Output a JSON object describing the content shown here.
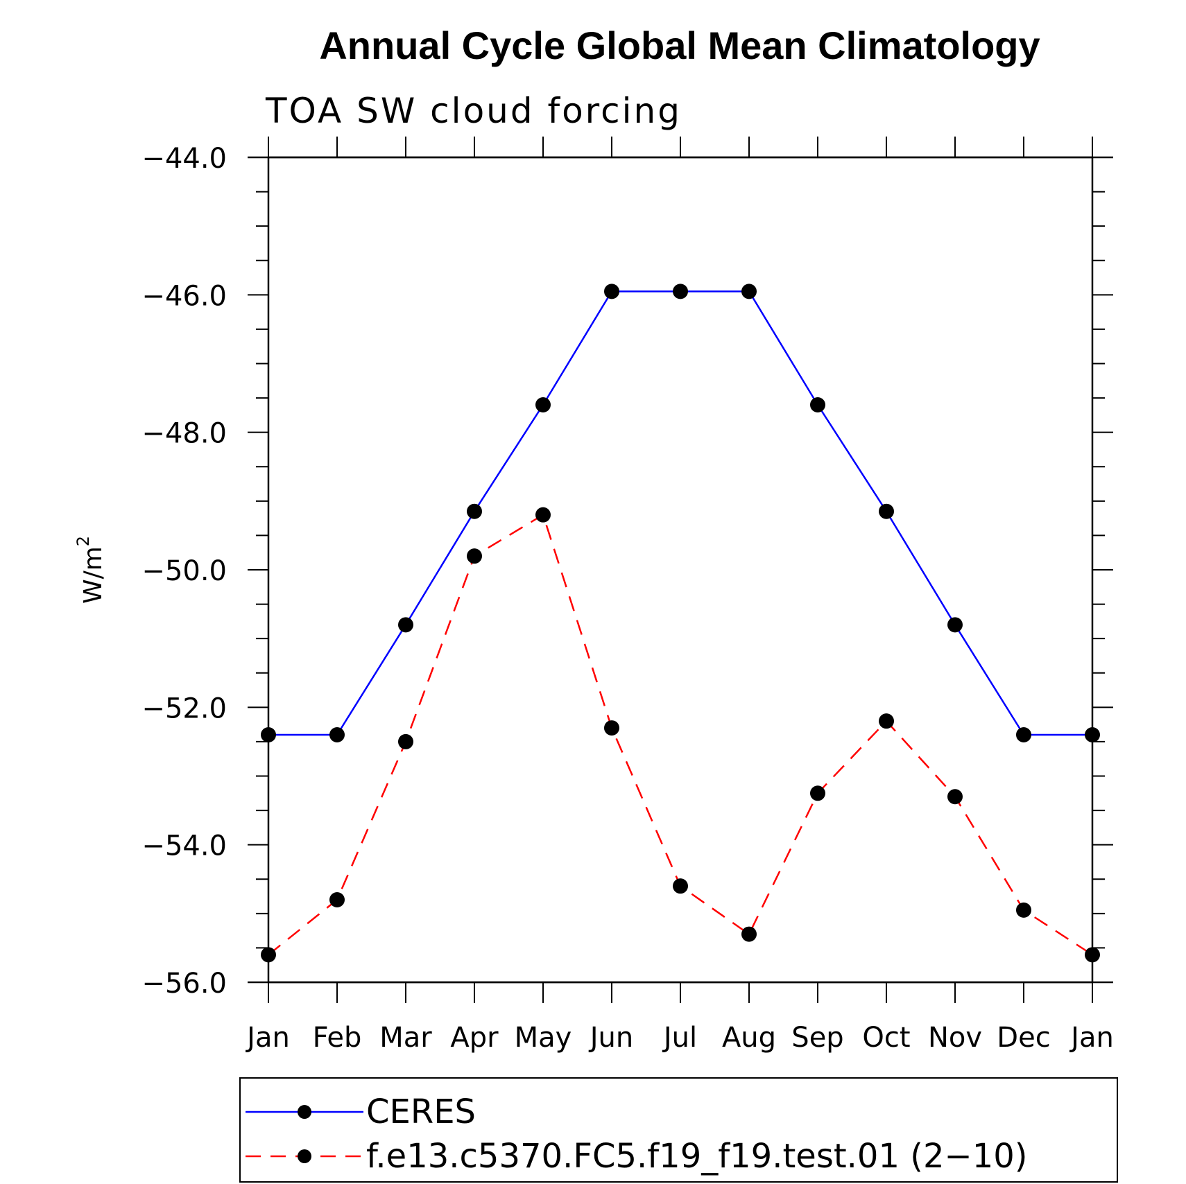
{
  "chart_data": {
    "type": "line",
    "title": "Annual Cycle Global Mean Climatology",
    "subtitle": "TOA SW cloud forcing",
    "ylabel": "W/m",
    "ylabel_superscript": "2",
    "xlabel": "",
    "categories": [
      "Jan",
      "Feb",
      "Mar",
      "Apr",
      "May",
      "Jun",
      "Jul",
      "Aug",
      "Sep",
      "Oct",
      "Nov",
      "Dec",
      "Jan"
    ],
    "ylim": [
      -56.0,
      -44.0
    ],
    "yticks": [
      -56.0,
      -54.0,
      -52.0,
      -50.0,
      -48.0,
      -46.0,
      -44.0
    ],
    "ytick_labels": [
      "−56.0",
      "−54.0",
      "−52.0",
      "−50.0",
      "−48.0",
      "−46.0",
      "−44.0"
    ],
    "y_minor_step": 0.5,
    "grid": false,
    "legend_placement": "bottom",
    "series": [
      {
        "name": "CERES",
        "color": "#0000ff",
        "dash": "solid",
        "marker_color": "#000000",
        "values": [
          -52.4,
          -52.4,
          -50.8,
          -49.15,
          -47.6,
          -45.95,
          -45.95,
          -45.95,
          -47.6,
          -49.15,
          -50.8,
          -52.4,
          -52.4
        ]
      },
      {
        "name": "f.e13.c5370.FC5.f19_f19.test.01 (2−10)",
        "color": "#ff0000",
        "dash": "dashed",
        "marker_color": "#000000",
        "values": [
          -55.6,
          -54.8,
          -52.5,
          -49.8,
          -49.2,
          -52.3,
          -54.6,
          -55.3,
          -53.25,
          -52.2,
          -53.3,
          -54.95,
          -55.6
        ]
      }
    ]
  }
}
